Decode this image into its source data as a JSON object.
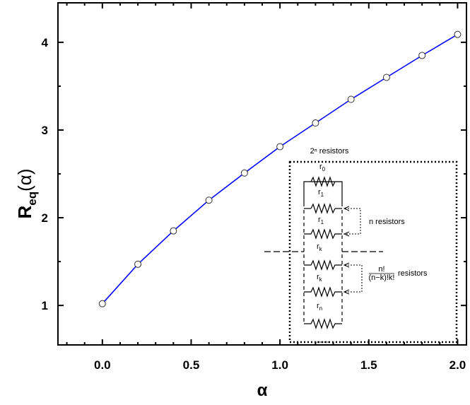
{
  "chart_data": {
    "type": "line",
    "title": "",
    "xlabel": "α",
    "ylabel": {
      "main": "R",
      "sub": "eq",
      "arg": "(α)"
    },
    "xlim": [
      -0.25,
      2.05
    ],
    "ylim": [
      0.55,
      4.45
    ],
    "xticks": [
      "0.0",
      "0.5",
      "1.0",
      "1.5",
      "2.0"
    ],
    "yticks": [
      "1",
      "2",
      "3",
      "4"
    ],
    "grid": false,
    "line_color": "#0000ff",
    "series": [
      {
        "x": [
          0.0,
          0.2,
          0.4,
          0.6,
          0.8,
          1.0,
          1.2,
          1.4,
          1.6,
          1.8,
          2.0
        ],
        "values": [
          1.02,
          1.47,
          1.85,
          2.2,
          2.51,
          2.81,
          3.08,
          3.35,
          3.6,
          3.85,
          4.09
        ]
      }
    ]
  },
  "inset": {
    "header": "2ⁿ resistors",
    "resistor_labels": [
      "r0",
      "r1",
      "r1",
      "rk",
      "rk",
      "rn"
    ],
    "r0": {
      "base": "r",
      "sub": "0"
    },
    "r1": {
      "base": "r",
      "sub": "1"
    },
    "rk": {
      "base": "r",
      "sub": "k"
    },
    "rn": {
      "base": "r",
      "sub": "n"
    },
    "n_resistors": "n resistors",
    "binom_num": "n!",
    "binom_den": "(n−k)!k!",
    "binom_tail": "resistors"
  }
}
